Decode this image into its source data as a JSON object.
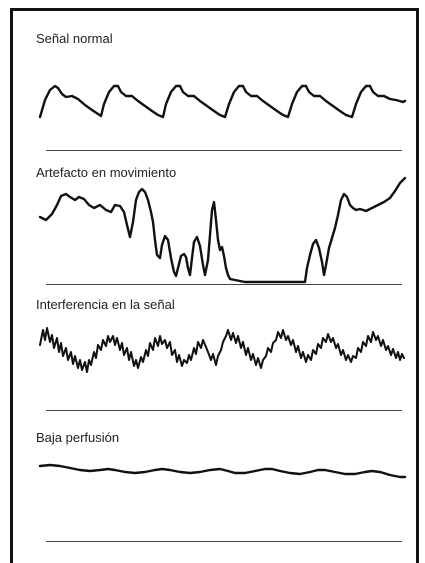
{
  "panels": [
    {
      "id": "normal",
      "label": "Señal normal"
    },
    {
      "id": "movement",
      "label": "Artefacto en movimiento"
    },
    {
      "id": "interference",
      "label": "Interferencia en la señal"
    },
    {
      "id": "lowperfusion",
      "label": "Baja perfusión"
    }
  ],
  "colors": {
    "trace": "#111111",
    "baseline": "#444444",
    "border": "#111111"
  }
}
